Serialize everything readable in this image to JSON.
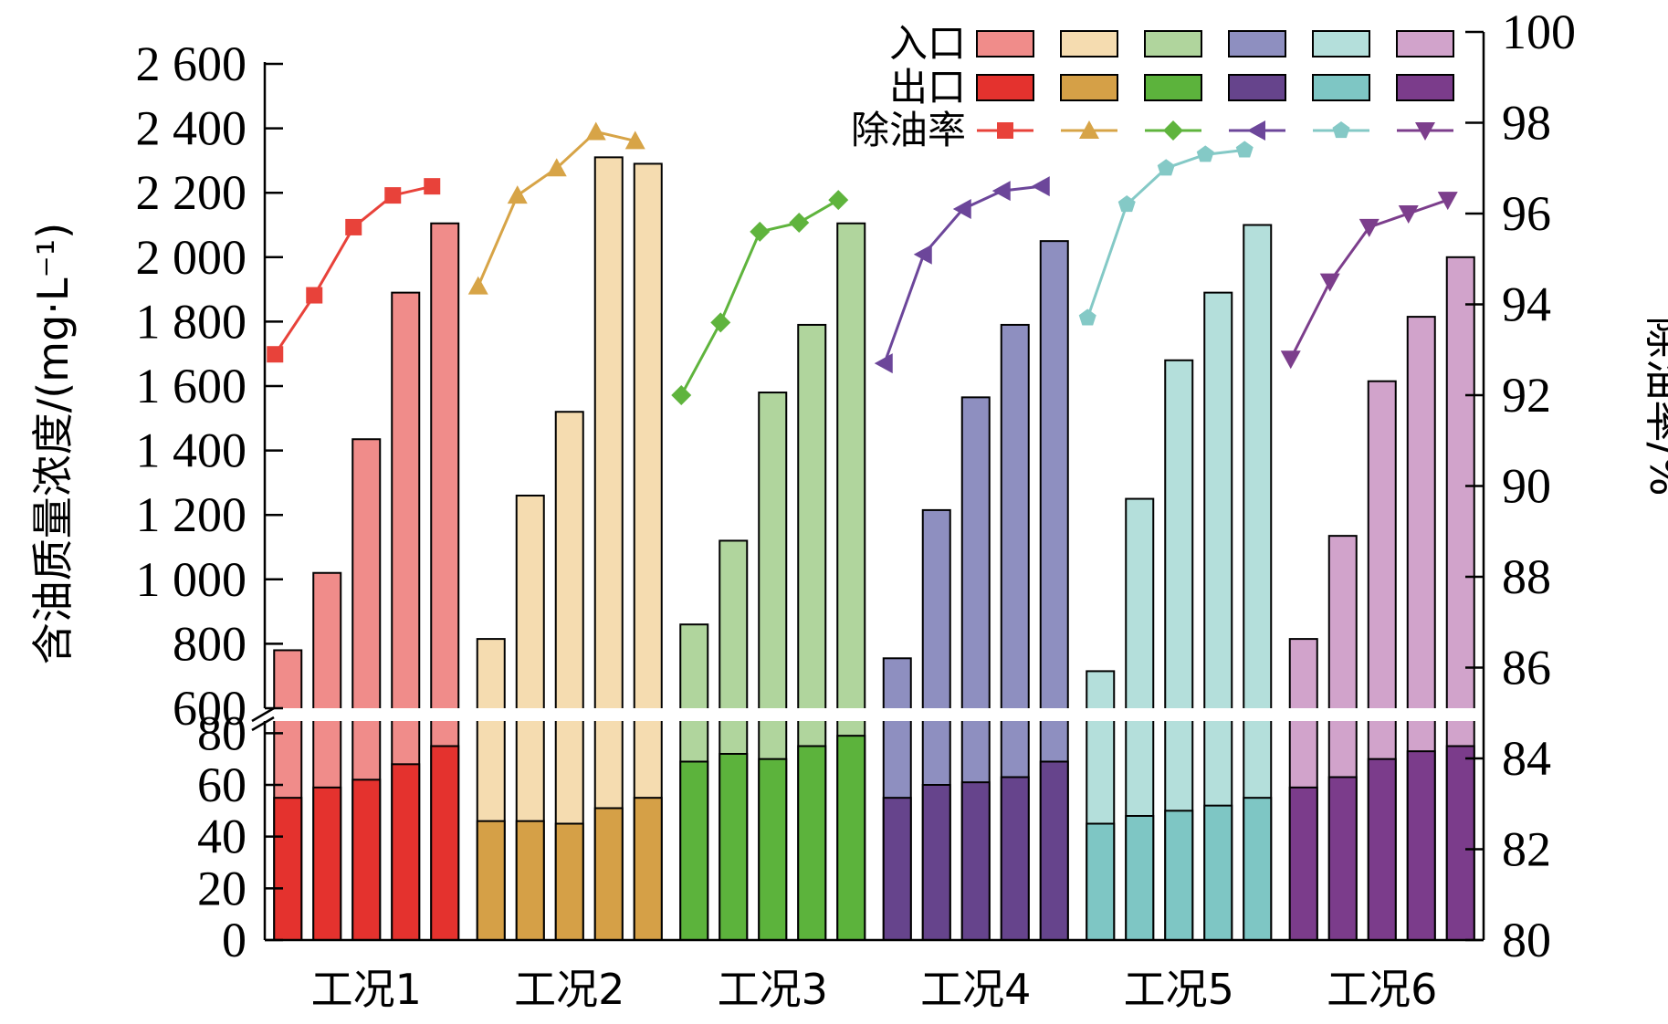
{
  "chart_data": {
    "type": "bar",
    "categories": [
      "工况1",
      "工况2",
      "工况3",
      "工况4",
      "工况5",
      "工况6"
    ],
    "ylabel_left": "含油质量浓度/(mg·L⁻¹)",
    "ylabel_right": "除油率/%",
    "left_axis": {
      "broken": true,
      "lower_range": [
        0,
        90
      ],
      "upper_range": [
        600,
        2600
      ],
      "lower_ticks": [
        0,
        20,
        40,
        60,
        80
      ],
      "upper_ticks": [
        600,
        800,
        1000,
        1200,
        1400,
        1600,
        1800,
        2000,
        2200,
        2400,
        2600
      ],
      "upper_tick_labels": [
        "600",
        "800",
        "1 000",
        "1 200",
        "1 400",
        "1 600",
        "1 800",
        "2 000",
        "2 200",
        "2 400",
        "2 600"
      ]
    },
    "right_axis": {
      "range": [
        80,
        100
      ],
      "ticks": [
        80,
        82,
        84,
        86,
        88,
        90,
        92,
        94,
        96,
        98,
        100
      ]
    },
    "legend": {
      "labels": [
        "入口",
        "出口",
        "除油率"
      ],
      "placement": "top-right"
    },
    "groups": [
      {
        "category": "工况1",
        "inlet_color": "#f08c8a",
        "outlet_color": "#e4322e",
        "line_color": "#e8423a",
        "marker": "square",
        "inlet": [
          780,
          1020,
          1435,
          1890,
          2105
        ],
        "outlet": [
          55,
          59,
          62,
          68,
          75
        ],
        "removal_rate": [
          92.9,
          94.2,
          95.7,
          96.4,
          96.6
        ]
      },
      {
        "category": "工况2",
        "inlet_color": "#f5dcb0",
        "outlet_color": "#d5a047",
        "line_color": "#d7a447",
        "marker": "triangle-up",
        "inlet": [
          815,
          1260,
          1520,
          2310,
          2290
        ],
        "outlet": [
          46,
          46,
          45,
          51,
          55
        ],
        "removal_rate": [
          94.4,
          96.4,
          97.0,
          97.8,
          97.6
        ]
      },
      {
        "category": "工况3",
        "inlet_color": "#b0d59d",
        "outlet_color": "#5cb33c",
        "line_color": "#5fb43d",
        "marker": "diamond",
        "inlet": [
          860,
          1120,
          1580,
          1790,
          2105
        ],
        "outlet": [
          69,
          72,
          70,
          75,
          79
        ],
        "removal_rate": [
          92.0,
          93.6,
          95.6,
          95.8,
          96.3
        ]
      },
      {
        "category": "工况4",
        "inlet_color": "#8e8fc0",
        "outlet_color": "#66448c",
        "line_color": "#6c469a",
        "marker": "triangle-left",
        "inlet": [
          755,
          1215,
          1565,
          1790,
          2050
        ],
        "outlet": [
          55,
          60,
          61,
          63,
          69
        ],
        "removal_rate": [
          92.7,
          95.1,
          96.1,
          96.5,
          96.6
        ]
      },
      {
        "category": "工况5",
        "inlet_color": "#b4dfdb",
        "outlet_color": "#7ec6c4",
        "line_color": "#84c9c6",
        "marker": "pentagon",
        "inlet": [
          715,
          1250,
          1680,
          1890,
          2100
        ],
        "outlet": [
          45,
          48,
          50,
          52,
          55
        ],
        "removal_rate": [
          93.7,
          96.2,
          97.0,
          97.3,
          97.4
        ]
      },
      {
        "category": "工况6",
        "inlet_color": "#d1a3cb",
        "outlet_color": "#7b3c8b",
        "line_color": "#7c3e8c",
        "marker": "triangle-down",
        "inlet": [
          815,
          1135,
          1615,
          1815,
          2000
        ],
        "outlet": [
          59,
          63,
          70,
          73,
          75
        ],
        "removal_rate": [
          92.8,
          94.5,
          95.7,
          96.0,
          96.3
        ]
      }
    ]
  }
}
